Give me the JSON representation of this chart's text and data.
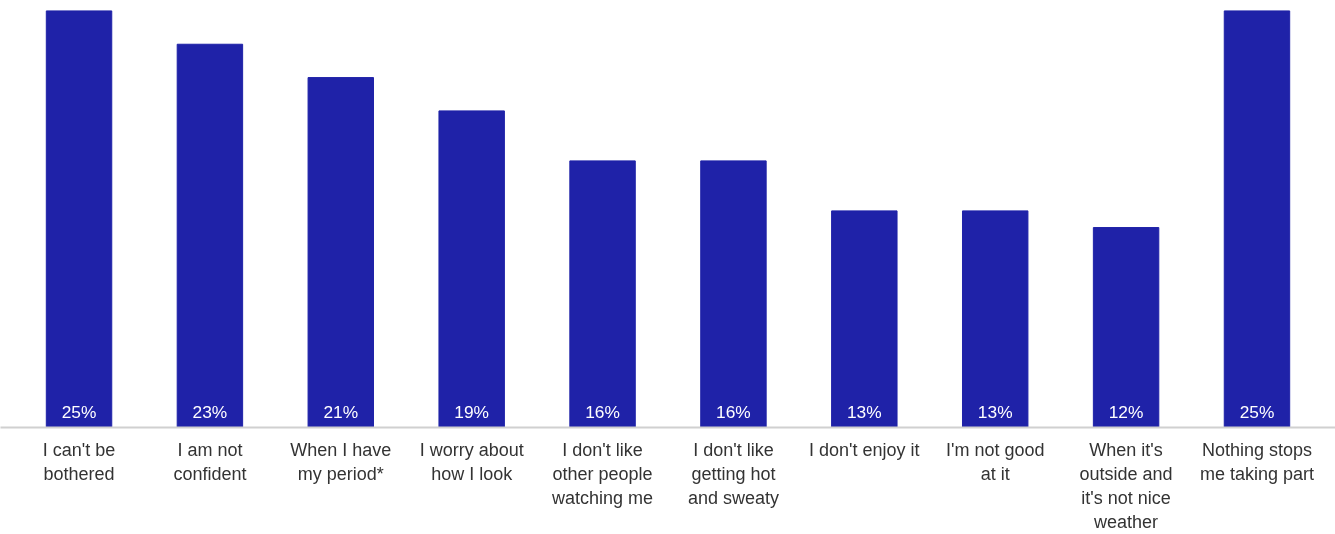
{
  "chart_data": {
    "type": "bar",
    "categories": [
      "I can't be\nbothered",
      "I am not\nconfident",
      "When I have\nmy period*",
      "I worry about\nhow I look",
      "I don't like\nother people\nwatching me",
      "I don't like\ngetting hot\nand sweaty",
      "I don't enjoy it",
      "I'm not good\nat it",
      "When it's\noutside and\nit's not nice\nweather",
      "Nothing stops\nme taking part"
    ],
    "values": [
      25,
      23,
      21,
      19,
      16,
      16,
      13,
      13,
      12,
      25
    ],
    "value_labels": [
      "25%",
      "23%",
      "21%",
      "19%",
      "16%",
      "16%",
      "13%",
      "13%",
      "12%",
      "25%"
    ],
    "color": "#1f22a8",
    "grid": false
  }
}
